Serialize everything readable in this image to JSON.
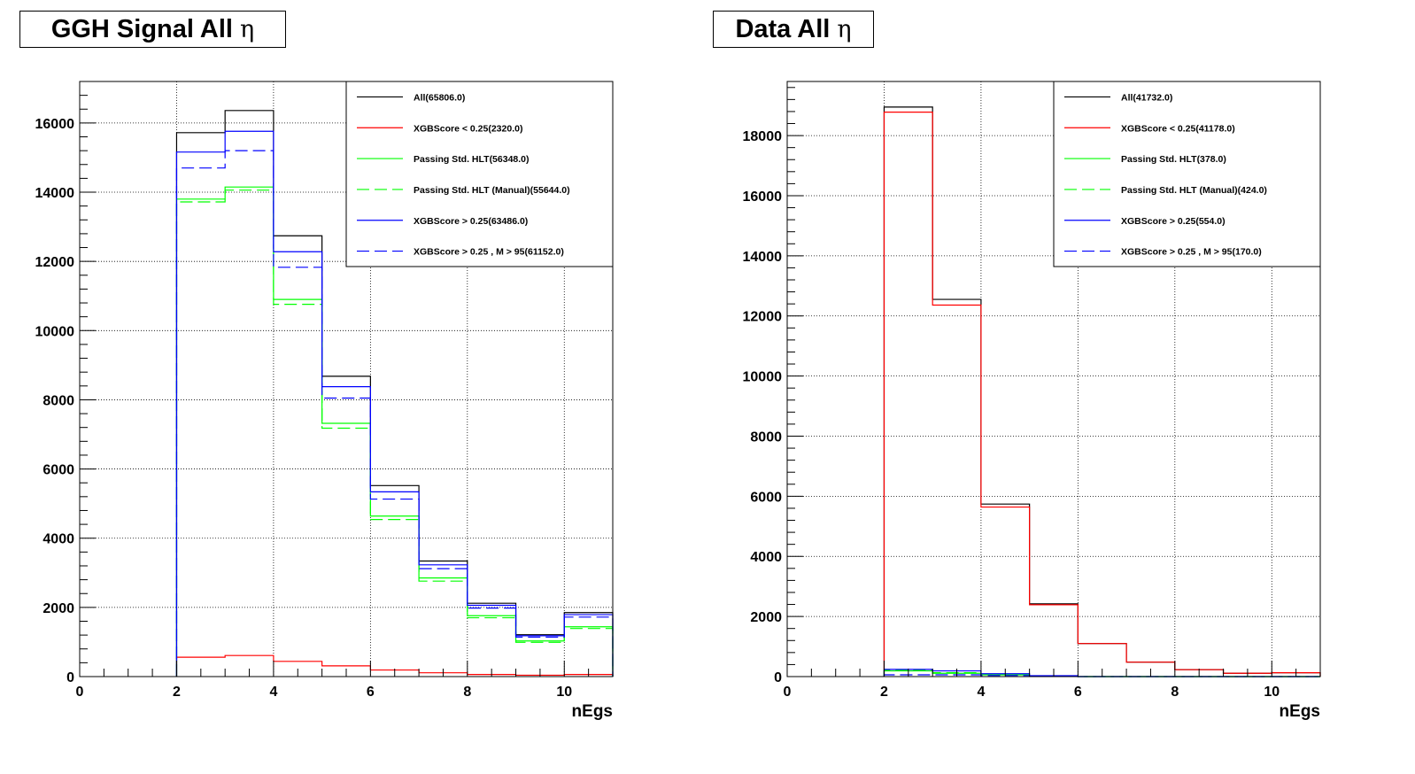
{
  "panels": [
    {
      "title": "GGH Signal All",
      "title_symbol": "η",
      "chart_data": {
        "type": "histogram",
        "title": "GGH Signal All η",
        "xlabel": "nEgs",
        "ylabel": "",
        "xlim": [
          0,
          11
        ],
        "ylim": [
          0,
          17200
        ],
        "xticks": [
          0,
          2,
          4,
          6,
          8,
          10
        ],
        "yticks": [
          0,
          2000,
          4000,
          6000,
          8000,
          10000,
          12000,
          14000,
          16000
        ],
        "grid": true,
        "legend_position": "top-right",
        "bin_edges": [
          2,
          3,
          4,
          5,
          6,
          7,
          8,
          9,
          10,
          11
        ],
        "series": [
          {
            "name": "All(65806.0)",
            "color": "#000000",
            "style": "solid",
            "values": [
              15720,
              16360,
              12740,
              8680,
              5520,
              3340,
              2120,
              1210,
              1850
            ]
          },
          {
            "name": "XGBScore < 0.25(2320.0)",
            "color": "#ff0000",
            "style": "solid",
            "values": [
              560,
              610,
              440,
              310,
              190,
              110,
              60,
              40,
              60
            ]
          },
          {
            "name": "Passing Std. HLT(56348.0)",
            "color": "#00ff00",
            "style": "solid",
            "values": [
              13800,
              14150,
              10900,
              7320,
              4640,
              2850,
              1760,
              1030,
              1440
            ]
          },
          {
            "name": "Passing Std. HLT (Manual)(55644.0)",
            "color": "#00ff00",
            "style": "dashed",
            "values": [
              13720,
              14060,
              10760,
              7180,
              4540,
              2760,
              1700,
              990,
              1390
            ]
          },
          {
            "name": "XGBScore > 0.25(63486.0)",
            "color": "#0000ff",
            "style": "solid",
            "values": [
              15160,
              15760,
              12280,
              8380,
              5340,
              3230,
              2060,
              1180,
              1790
            ]
          },
          {
            "name": "XGBScore > 0.25 , M > 95(61152.0)",
            "color": "#0000ff",
            "style": "dashed",
            "values": [
              14700,
              15200,
              11830,
              8050,
              5130,
              3120,
              1980,
              1140,
              1720
            ]
          }
        ]
      }
    },
    {
      "title": "Data All",
      "title_symbol": "η",
      "chart_data": {
        "type": "histogram",
        "title": "Data All η",
        "xlabel": "nEgs",
        "ylabel": "",
        "xlim": [
          0,
          11
        ],
        "ylim": [
          0,
          19800
        ],
        "xticks": [
          0,
          2,
          4,
          6,
          8,
          10
        ],
        "yticks": [
          0,
          2000,
          4000,
          6000,
          8000,
          10000,
          12000,
          14000,
          16000,
          18000
        ],
        "grid": true,
        "legend_position": "top-right",
        "bin_edges": [
          2,
          3,
          4,
          5,
          6,
          7,
          8,
          9,
          10,
          11
        ],
        "series": [
          {
            "name": "All(41732.0)",
            "color": "#000000",
            "style": "solid",
            "values": [
              18950,
              12550,
              5740,
              2420,
              1100,
              480,
              230,
              110,
              130
            ]
          },
          {
            "name": "XGBScore < 0.25(41178.0)",
            "color": "#ff0000",
            "style": "solid",
            "values": [
              18780,
              12360,
              5640,
              2390,
              1100,
              480,
              230,
              110,
              130
            ]
          },
          {
            "name": "Passing Std. HLT(378.0)",
            "color": "#00ff00",
            "style": "solid",
            "values": [
              190,
              110,
              60,
              18,
              0,
              0,
              0,
              0,
              0
            ]
          },
          {
            "name": "Passing Std. HLT (Manual)(424.0)",
            "color": "#00ff00",
            "style": "dashed",
            "values": [
              210,
              130,
              65,
              19,
              0,
              0,
              0,
              0,
              0
            ]
          },
          {
            "name": "XGBScore > 0.25(554.0)",
            "color": "#0000ff",
            "style": "solid",
            "values": [
              240,
              190,
              95,
              30,
              0,
              0,
              0,
              0,
              0
            ]
          },
          {
            "name": "XGBScore > 0.25 , M > 95(170.0)",
            "color": "#0000ff",
            "style": "dashed",
            "values": [
              60,
              60,
              35,
              15,
              0,
              0,
              0,
              0,
              0
            ]
          }
        ]
      }
    }
  ]
}
